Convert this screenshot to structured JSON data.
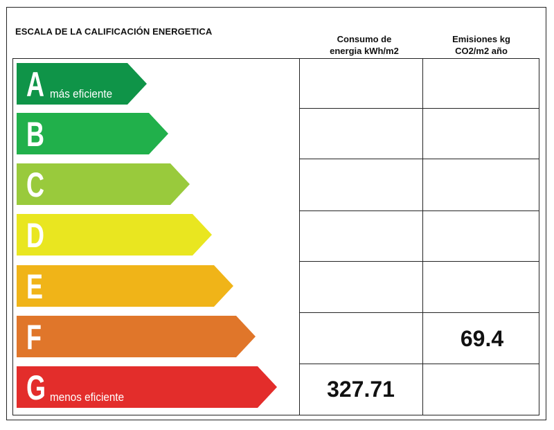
{
  "title": "ESCALA DE LA CALIFICACIÓN ENERGETICA",
  "columns": {
    "consumption": {
      "line1": "Consumo de",
      "line2": "energia kWh/m2"
    },
    "emissions": {
      "line1": "Emisiones kg",
      "line2": "CO2/m2 año"
    }
  },
  "ratings": [
    {
      "letter": "A",
      "sub": "más eficiente",
      "color": "#0f9448"
    },
    {
      "letter": "B",
      "sub": "",
      "color": "#21b04b"
    },
    {
      "letter": "C",
      "sub": "",
      "color": "#99ca3c"
    },
    {
      "letter": "D",
      "sub": "",
      "color": "#e9e620"
    },
    {
      "letter": "E",
      "sub": "",
      "color": "#f0b418"
    },
    {
      "letter": "F",
      "sub": "",
      "color": "#e0762a"
    },
    {
      "letter": "G",
      "sub": "menos eficiente",
      "color": "#e32d2b"
    }
  ],
  "values": {
    "consumption_value": "327.71",
    "consumption_rating": "G",
    "emissions_value": "69.4",
    "emissions_rating": "F"
  }
}
